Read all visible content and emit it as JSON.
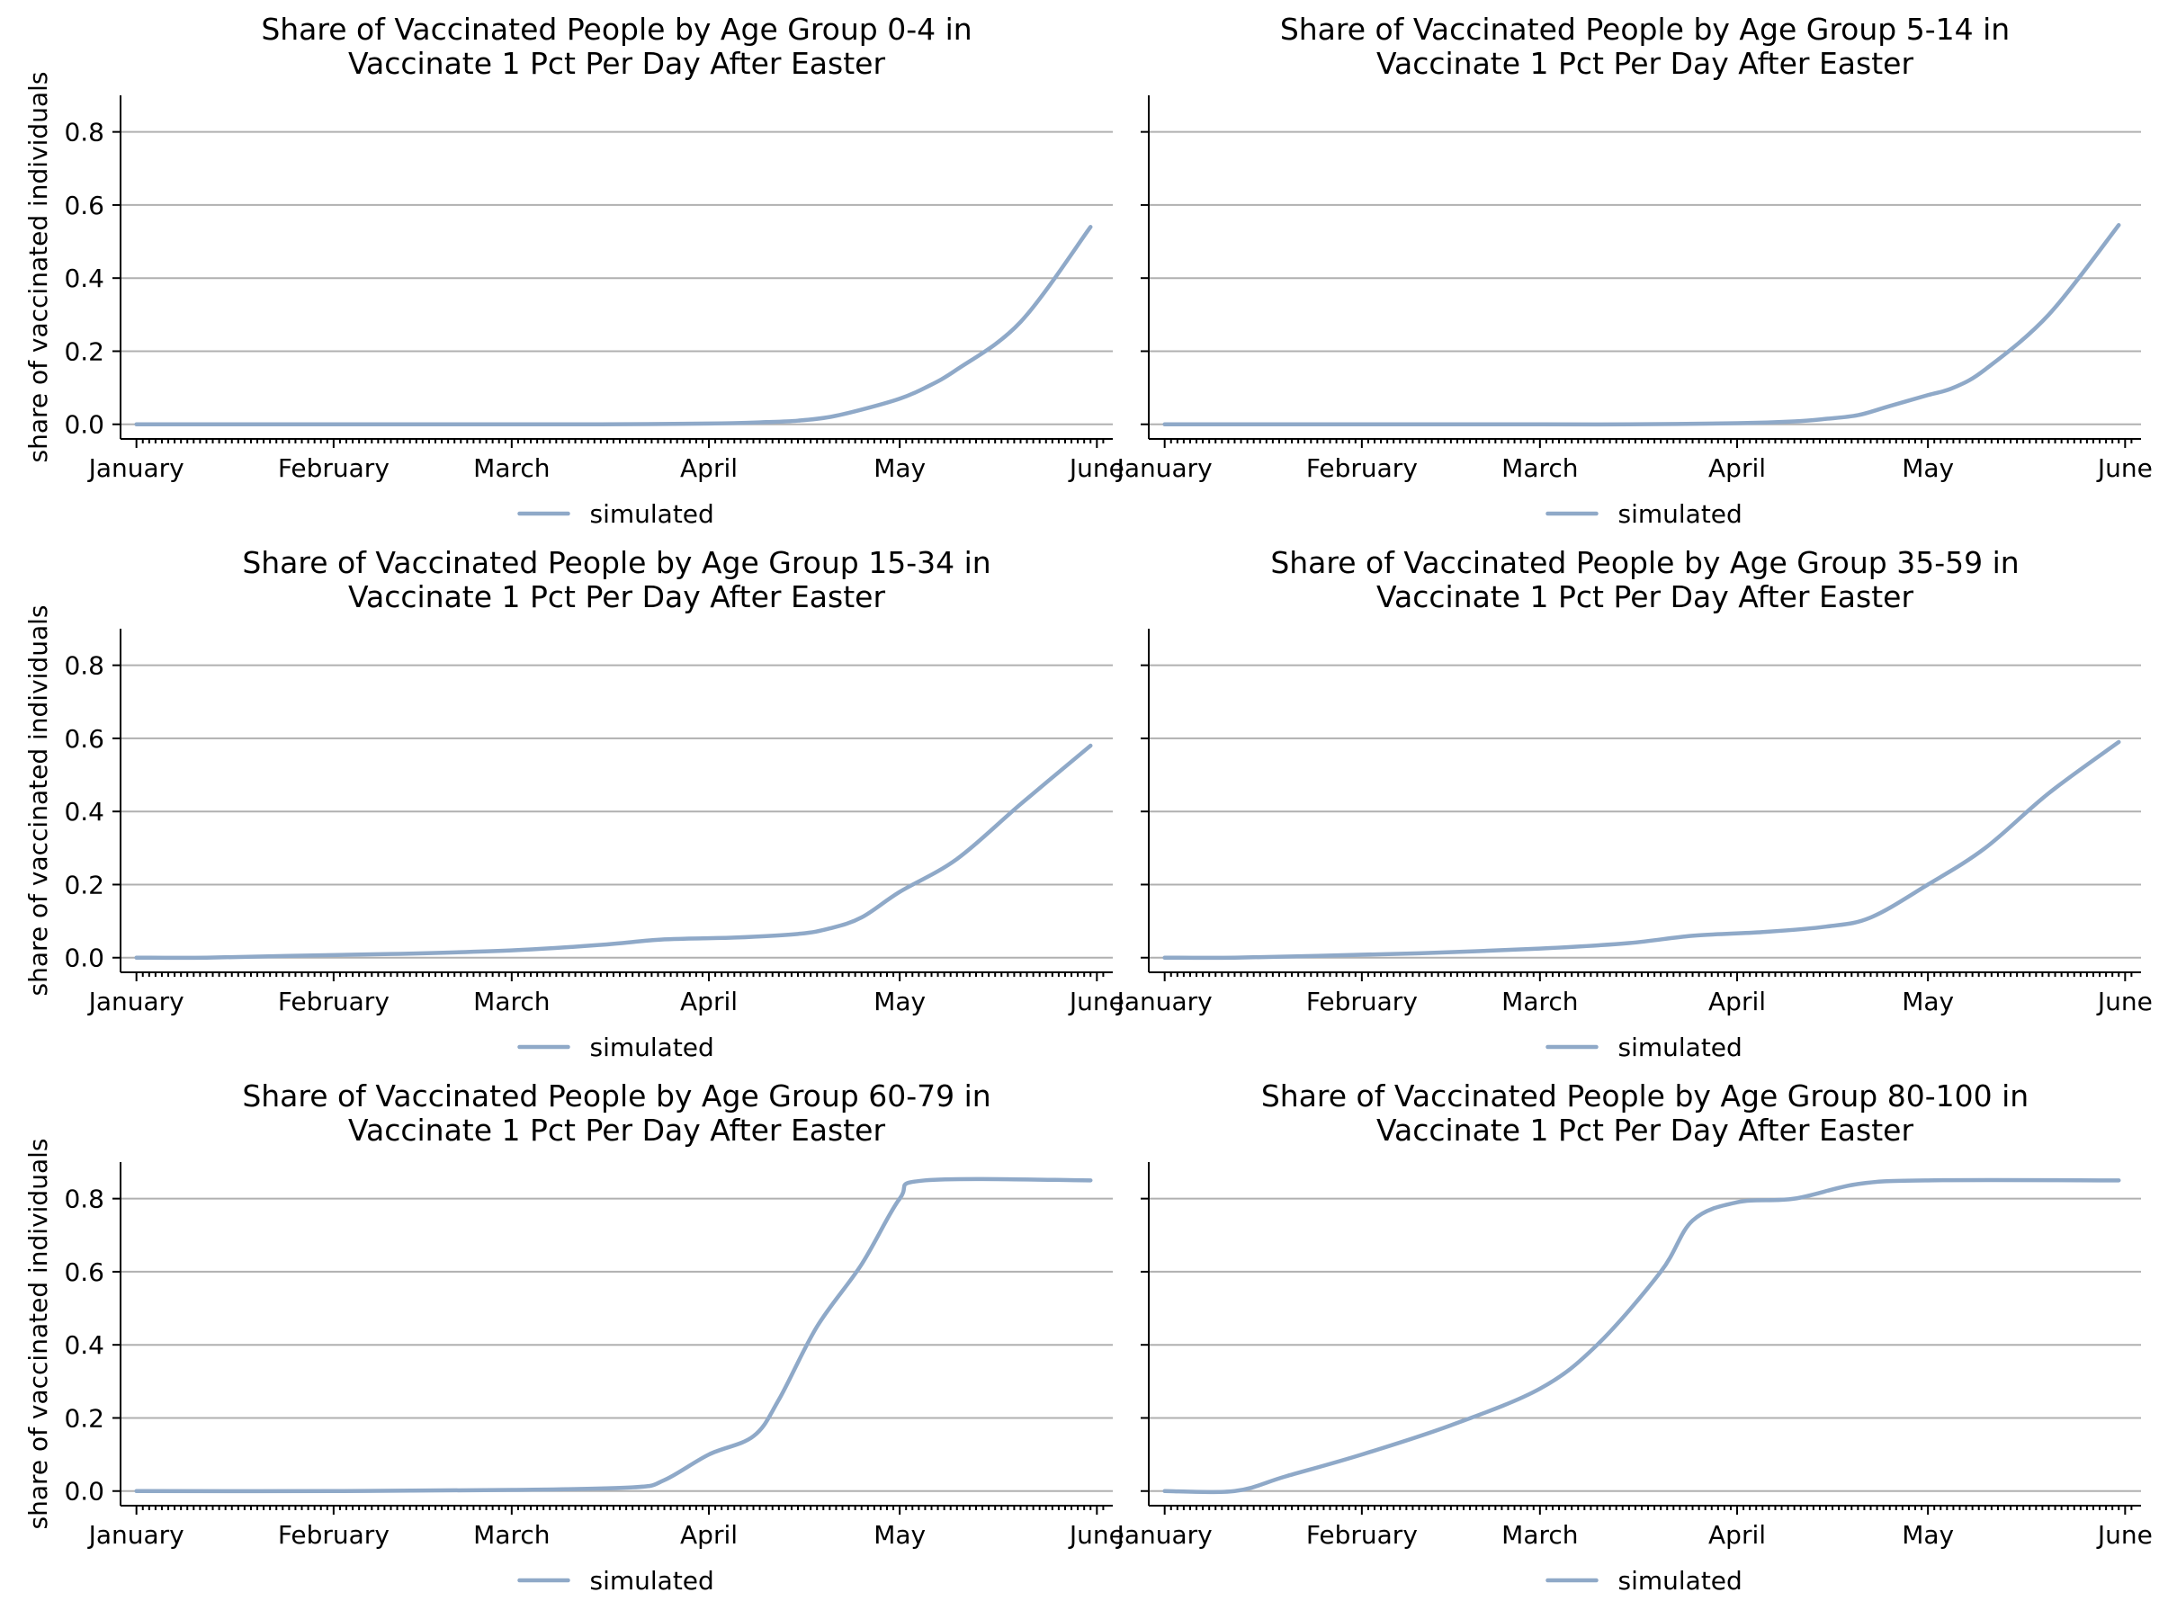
{
  "figure": {
    "line_color": "#8fa9c8",
    "grid_color": "#b0b0b0"
  },
  "chart_data": [
    {
      "type": "line",
      "title": [
        "Share of Vaccinated People by Age Group 0-4 in",
        "Vaccinate 1 Pct Per Day After Easter"
      ],
      "ylabel": "share of vaccinated individuals",
      "xlabel": "",
      "ylim": [
        -0.04,
        0.9
      ],
      "yticks": [
        "0.0",
        "0.2",
        "0.4",
        "0.6",
        "0.8"
      ],
      "xticks": [
        "January",
        "February",
        "March",
        "April",
        "May",
        "June"
      ],
      "grid": "horizontal",
      "legend": {
        "position": "below-center",
        "entries": [
          "simulated"
        ]
      },
      "series": [
        {
          "name": "simulated",
          "points": [
            [
              "2021-01-01",
              0.0
            ],
            [
              "2021-02-01",
              0.0
            ],
            [
              "2021-03-01",
              0.0
            ],
            [
              "2021-03-15",
              0.0
            ],
            [
              "2021-04-01",
              0.002
            ],
            [
              "2021-04-10",
              0.006
            ],
            [
              "2021-04-15",
              0.01
            ],
            [
              "2021-04-20",
              0.02
            ],
            [
              "2021-04-25",
              0.04
            ],
            [
              "2021-05-01",
              0.07
            ],
            [
              "2021-05-05",
              0.1
            ],
            [
              "2021-05-10",
              0.15
            ],
            [
              "2021-05-20",
              0.28
            ],
            [
              "2021-05-31",
              0.54
            ]
          ]
        }
      ]
    },
    {
      "type": "line",
      "title": [
        "Share of Vaccinated People by Age Group 5-14 in",
        "Vaccinate 1 Pct Per Day After Easter"
      ],
      "ylabel": "",
      "xlabel": "",
      "ylim": [
        -0.04,
        0.9
      ],
      "yticks": [
        "0.0",
        "0.2",
        "0.4",
        "0.6",
        "0.8"
      ],
      "xticks": [
        "January",
        "February",
        "March",
        "April",
        "May",
        "June"
      ],
      "grid": "horizontal",
      "legend": {
        "position": "below-center",
        "entries": [
          "simulated"
        ]
      },
      "series": [
        {
          "name": "simulated",
          "points": [
            [
              "2021-01-01",
              0.0
            ],
            [
              "2021-02-01",
              0.0
            ],
            [
              "2021-03-01",
              0.0
            ],
            [
              "2021-03-15",
              0.0
            ],
            [
              "2021-04-01",
              0.003
            ],
            [
              "2021-04-10",
              0.008
            ],
            [
              "2021-04-15",
              0.015
            ],
            [
              "2021-04-20",
              0.025
            ],
            [
              "2021-04-25",
              0.05
            ],
            [
              "2021-05-01",
              0.08
            ],
            [
              "2021-05-05",
              0.1
            ],
            [
              "2021-05-10",
              0.15
            ],
            [
              "2021-05-20",
              0.3
            ],
            [
              "2021-05-31",
              0.545
            ]
          ]
        }
      ]
    },
    {
      "type": "line",
      "title": [
        "Share of Vaccinated People by Age Group 15-34 in",
        "Vaccinate 1 Pct Per Day After Easter"
      ],
      "ylabel": "share of vaccinated individuals",
      "xlabel": "",
      "ylim": [
        -0.04,
        0.9
      ],
      "yticks": [
        "0.0",
        "0.2",
        "0.4",
        "0.6",
        "0.8"
      ],
      "xticks": [
        "January",
        "February",
        "March",
        "April",
        "May",
        "June"
      ],
      "grid": "horizontal",
      "legend": {
        "position": "below-center",
        "entries": [
          "simulated"
        ]
      },
      "series": [
        {
          "name": "simulated",
          "points": [
            [
              "2021-01-01",
              0.0
            ],
            [
              "2021-01-12",
              0.0
            ],
            [
              "2021-01-25",
              0.005
            ],
            [
              "2021-02-10",
              0.01
            ],
            [
              "2021-03-01",
              0.02
            ],
            [
              "2021-03-15",
              0.035
            ],
            [
              "2021-03-25",
              0.05
            ],
            [
              "2021-04-05",
              0.055
            ],
            [
              "2021-04-15",
              0.065
            ],
            [
              "2021-04-20",
              0.08
            ],
            [
              "2021-04-25",
              0.11
            ],
            [
              "2021-05-01",
              0.18
            ],
            [
              "2021-05-10",
              0.27
            ],
            [
              "2021-05-20",
              0.42
            ],
            [
              "2021-05-31",
              0.58
            ]
          ]
        }
      ]
    },
    {
      "type": "line",
      "title": [
        "Share of Vaccinated People by Age Group 35-59 in",
        "Vaccinate 1 Pct Per Day After Easter"
      ],
      "ylabel": "",
      "xlabel": "",
      "ylim": [
        -0.04,
        0.9
      ],
      "yticks": [
        "0.0",
        "0.2",
        "0.4",
        "0.6",
        "0.8"
      ],
      "xticks": [
        "January",
        "February",
        "March",
        "April",
        "May",
        "June"
      ],
      "grid": "horizontal",
      "legend": {
        "position": "below-center",
        "entries": [
          "simulated"
        ]
      },
      "series": [
        {
          "name": "simulated",
          "points": [
            [
              "2021-01-01",
              0.0
            ],
            [
              "2021-01-12",
              0.0
            ],
            [
              "2021-01-25",
              0.005
            ],
            [
              "2021-02-10",
              0.012
            ],
            [
              "2021-03-01",
              0.025
            ],
            [
              "2021-03-15",
              0.04
            ],
            [
              "2021-03-25",
              0.06
            ],
            [
              "2021-04-05",
              0.07
            ],
            [
              "2021-04-15",
              0.085
            ],
            [
              "2021-04-22",
              0.11
            ],
            [
              "2021-05-01",
              0.2
            ],
            [
              "2021-05-10",
              0.3
            ],
            [
              "2021-05-20",
              0.45
            ],
            [
              "2021-05-31",
              0.59
            ]
          ]
        }
      ]
    },
    {
      "type": "line",
      "title": [
        "Share of Vaccinated People by Age Group 60-79 in",
        "Vaccinate 1 Pct Per Day After Easter"
      ],
      "ylabel": "share of vaccinated individuals",
      "xlabel": "",
      "ylim": [
        -0.04,
        0.9
      ],
      "yticks": [
        "0.0",
        "0.2",
        "0.4",
        "0.6",
        "0.8"
      ],
      "xticks": [
        "January",
        "February",
        "March",
        "April",
        "May",
        "June"
      ],
      "grid": "horizontal",
      "legend": {
        "position": "below-center",
        "entries": [
          "simulated"
        ]
      },
      "series": [
        {
          "name": "simulated",
          "points": [
            [
              "2021-01-01",
              0.0
            ],
            [
              "2021-02-01",
              0.0
            ],
            [
              "2021-03-01",
              0.003
            ],
            [
              "2021-03-20",
              0.01
            ],
            [
              "2021-03-25",
              0.03
            ],
            [
              "2021-04-01",
              0.1
            ],
            [
              "2021-04-08",
              0.15
            ],
            [
              "2021-04-12",
              0.25
            ],
            [
              "2021-04-18",
              0.45
            ],
            [
              "2021-04-25",
              0.62
            ],
            [
              "2021-05-01",
              0.8
            ],
            [
              "2021-05-05",
              0.85
            ],
            [
              "2021-05-31",
              0.85
            ]
          ]
        }
      ]
    },
    {
      "type": "line",
      "title": [
        "Share of Vaccinated People by Age Group 80-100 in",
        "Vaccinate 1 Pct Per Day After Easter"
      ],
      "ylabel": "",
      "xlabel": "",
      "ylim": [
        -0.04,
        0.9
      ],
      "yticks": [
        "0.0",
        "0.2",
        "0.4",
        "0.6",
        "0.8"
      ],
      "xticks": [
        "January",
        "February",
        "March",
        "April",
        "May",
        "June"
      ],
      "grid": "horizontal",
      "legend": {
        "position": "below-center",
        "entries": [
          "simulated"
        ]
      },
      "series": [
        {
          "name": "simulated",
          "points": [
            [
              "2021-01-01",
              0.0
            ],
            [
              "2021-01-12",
              0.0
            ],
            [
              "2021-01-20",
              0.04
            ],
            [
              "2021-02-01",
              0.1
            ],
            [
              "2021-02-15",
              0.18
            ],
            [
              "2021-03-01",
              0.28
            ],
            [
              "2021-03-10",
              0.4
            ],
            [
              "2021-03-20",
              0.6
            ],
            [
              "2021-03-25",
              0.74
            ],
            [
              "2021-04-01",
              0.79
            ],
            [
              "2021-04-10",
              0.8
            ],
            [
              "2021-04-20",
              0.84
            ],
            [
              "2021-05-01",
              0.85
            ],
            [
              "2021-05-31",
              0.85
            ]
          ]
        }
      ]
    }
  ]
}
